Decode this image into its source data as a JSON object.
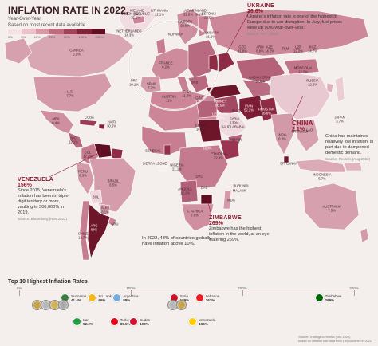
{
  "header": {
    "title": "INFLATION RATE IN 2022,",
    "subtitle_1": "Year-Over-Year",
    "subtitle_2": "Based on most recent data available"
  },
  "legend": {
    "ticks": [
      "0%",
      "5%",
      "10%",
      "25%",
      "50%",
      "100%",
      "200%+"
    ],
    "colors": [
      "#f6e3e7",
      "#ecc2cb",
      "#d997a6",
      "#c06b80",
      "#a2425b",
      "#83213a",
      "#5e0f22"
    ]
  },
  "colors": {
    "ocean": "#f4efec",
    "land_default": "#d8a3b1",
    "accent": "#8c1c2f",
    "china": "#e9c9d1",
    "high": "#83213a",
    "extreme": "#5e0f22"
  },
  "annotations": {
    "ukraine": {
      "name": "UKRAINE",
      "value": "26.6%",
      "body": "Ukraine's inflation rate is one of the highest in Europe due to war disruption. In July, fuel prices were up 90% year-over-year.",
      "source": "Source: NYT (2022)"
    },
    "china": {
      "name": "CHINA",
      "value": "2.1%",
      "body": "China has maintained relatively low inflation, in part due to dampened domestic demand.",
      "source": "Source: Reuters (Aug 2022)"
    },
    "venezuela": {
      "name": "VENEZUELA",
      "value": "156%",
      "body": "Since 2015, Venezuela's inflation has been in triple-digit territory or more, vaulting to 300,000% in 2019.",
      "source": "Source: Bloomberg (Nov 2022)"
    },
    "zimbabwe": {
      "name": "ZIMBABWE",
      "value": "269%",
      "body": "Zimbabwe has the highest inflation in the world, at an eye watering 269%."
    }
  },
  "note": "In 2022, 43% of countries globally have inflation above 10%.",
  "labels": {
    "canada": "CANADA\n6.9%",
    "us": "U.S.\n7.7%",
    "mexico": "MEX\n8.4%",
    "cuba": "CUBA\n",
    "haiti": "HAITI\n30.6%",
    "nicaragua": "NIC\n12.1%",
    "colombia": "COL\n12.2%",
    "peru": "PERU\n8.3%",
    "brazil": "BRAZIL\n6.5%",
    "bolivia": "BOL\n",
    "argentina": "ARG\n88%",
    "chile": "CHILE\n13.7%",
    "paraguay": "PARA\n8.1%",
    "uruguay": "URU\n",
    "iceland": "ICELAND\n9.4%",
    "finland": "FINLAND\n9.1%",
    "sweden": "SWEDEN\n10.9%",
    "norway": "NORWAY\n",
    "czech": "CZECH REPUBLIC\n15.1%",
    "lithuania": "LITHUANIA\n22.1%",
    "latvia": "LATVIA\n21.8%",
    "estonia": "ESTONIA\n22.5%",
    "netherlands": "NETHERLANDS\n14.3%",
    "hungary": "HUNGARY\n21.1%",
    "serbia": "SRB\n",
    "portugal": "PRT\n10.1%",
    "spain": "SPAIN\n7.3%",
    "france": "FRANCE\n6.2%",
    "austria": "AUSTRIA\n11%",
    "italy": "ITALY\n11.8%",
    "greece": "GRC\n",
    "turkey": "TURKEY\n85.5%",
    "georgia": "GEO\n11.9%",
    "armenia": "ARM\n8.9%",
    "azerbaijan": "AZE\n14.2%",
    "turkmenistan": "TKM\n",
    "uzbekistan": "UZB\n12.2%",
    "kyrgyzstan": "KGZ\n14.7%",
    "russia": "RUSSIA\n12.6%",
    "kazakhstan": "KAZAKHSTAN\n18.8%",
    "mongolia": "MONGOLIA\n13.2%",
    "japan": "JAPAN\n3.7%",
    "iran": "IRAN\n52.2%",
    "lebanon": "LEBANON\n162%",
    "syria": "SYRIA\n139%",
    "iraq": "IRAQ\n",
    "saudi": "SAUDI ARABIA\n",
    "egypt": "EGYPT\n16.2%",
    "sudan": "SUDAN\n103%",
    "yemen": "YEMEN\n",
    "ethiopia": "ETHIOPIA\n32.8%",
    "senegal": "SENEGAL\n",
    "sierra_leone": "SIERRA LEONE\n",
    "ghana": "GHANA\n40.4%",
    "nigeria": "NIGERIA\n21.1%",
    "drc": "DRC\n",
    "angola": "ANGOLA\n16.1%",
    "malawi": "MALAWI\n",
    "burundi": "BURUNDI\n",
    "zambia": "ZMB\n",
    "south_africa": "S. AFRICA\n7.6%",
    "madagascar": "MDG\n",
    "pakistan": "PAKISTAN\n26.6%",
    "india": "INDIA\n6.8%",
    "sri_lanka": "SRI LANKA\n",
    "myanmar": "MYANMAR\n",
    "laos": "LAO\n",
    "indonesia": "INDONESIA\n5.7%",
    "australia": "AUSTRALIA\n7.3%"
  },
  "top10": {
    "title": "Top 10 Highest Inflation Rates",
    "scale": [
      "0%",
      "100%",
      "200%",
      "300%"
    ],
    "items": [
      {
        "name": "Suriname",
        "value": "41.4%",
        "rate": 41.4,
        "row": 0,
        "flag": "#377e3f"
      },
      {
        "name": "Sri Lanka",
        "value": "66%",
        "rate": 66,
        "row": 0,
        "flag": "#f7b718"
      },
      {
        "name": "Argentina",
        "value": "88%",
        "rate": 88,
        "row": 0,
        "flag": "#74acdf"
      },
      {
        "name": "Syria",
        "value": "139%",
        "rate": 139,
        "row": 0,
        "flag": "#ce1126"
      },
      {
        "name": "Lebanon",
        "value": "162%",
        "rate": 162,
        "row": 0,
        "flag": "#ed1c24"
      },
      {
        "name": "Zimbabwe",
        "value": "269%",
        "rate": 269,
        "row": 0,
        "flag": "#006400"
      },
      {
        "name": "Iran",
        "value": "52.2%",
        "rate": 52.2,
        "row": 1,
        "flag": "#239f40"
      },
      {
        "name": "Turkey",
        "value": "85.5%",
        "rate": 85.5,
        "row": 1,
        "flag": "#e30a17"
      },
      {
        "name": "Sudan",
        "value": "103%",
        "rate": 103,
        "row": 1,
        "flag": "#d21034"
      },
      {
        "name": "Venezuela",
        "value": "156%",
        "rate": 156,
        "row": 1,
        "flag": "#ffcc00"
      }
    ]
  },
  "footer": {
    "source_1": "Source: TradingEconomics (Nov 2022)",
    "source_2": "based on inflation rate data from 194 countries in 2022"
  }
}
